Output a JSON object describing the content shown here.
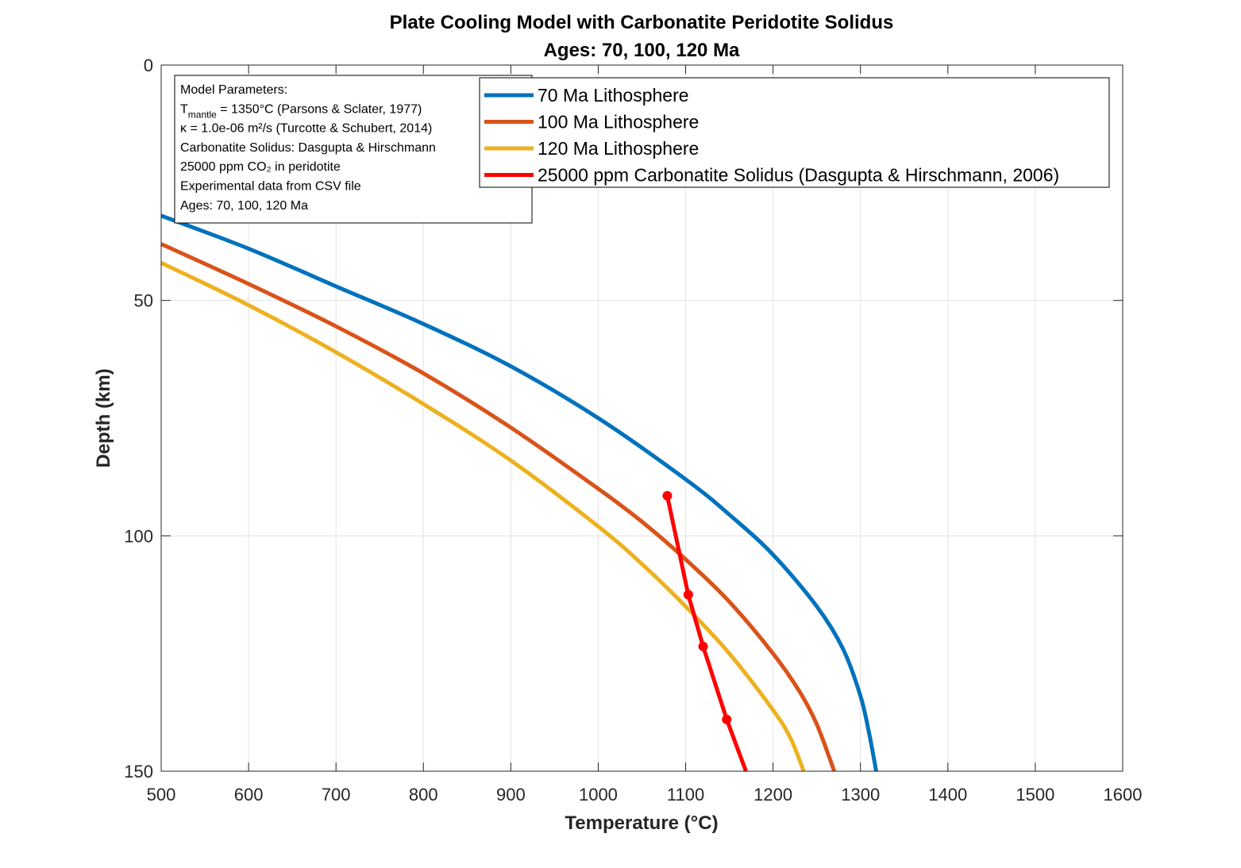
{
  "chart_data": {
    "type": "line",
    "title": "Plate Cooling Model with Carbonatite Peridotite Solidus",
    "subtitle": "Ages: 70, 100, 120 Ma",
    "xlabel": "Temperature (°C)",
    "ylabel": "Depth (km)",
    "xlim": [
      500,
      1600
    ],
    "ylim": [
      0,
      150
    ],
    "y_reversed": true,
    "x_ticks": [
      500,
      600,
      700,
      800,
      900,
      1000,
      1100,
      1200,
      1300,
      1400,
      1500,
      1600
    ],
    "y_ticks": [
      0,
      50,
      100,
      150
    ],
    "grid": true,
    "legend_position": "top-right",
    "series": [
      {
        "name": "70 Ma Lithosphere",
        "color": "#0072BD",
        "marker": false,
        "points": [
          [
            500,
            32
          ],
          [
            600,
            39
          ],
          [
            700,
            47
          ],
          [
            800,
            55
          ],
          [
            900,
            64
          ],
          [
            1000,
            75
          ],
          [
            1100,
            88
          ],
          [
            1150,
            95.5
          ],
          [
            1200,
            104
          ],
          [
            1250,
            115
          ],
          [
            1280,
            124
          ],
          [
            1300,
            134
          ],
          [
            1310,
            142
          ],
          [
            1318,
            150
          ]
        ]
      },
      {
        "name": "100 Ma Lithosphere",
        "color": "#D95319",
        "marker": false,
        "points": [
          [
            500,
            38
          ],
          [
            600,
            46.5
          ],
          [
            700,
            55.5
          ],
          [
            800,
            65.5
          ],
          [
            900,
            77
          ],
          [
            1000,
            90
          ],
          [
            1050,
            97
          ],
          [
            1100,
            105
          ],
          [
            1150,
            114
          ],
          [
            1200,
            125
          ],
          [
            1230,
            133
          ],
          [
            1250,
            140
          ],
          [
            1270,
            150
          ]
        ]
      },
      {
        "name": "120 Ma Lithosphere",
        "color": "#EDB120",
        "marker": false,
        "points": [
          [
            500,
            42
          ],
          [
            600,
            51
          ],
          [
            700,
            61
          ],
          [
            800,
            72
          ],
          [
            900,
            84
          ],
          [
            1000,
            98
          ],
          [
            1050,
            106
          ],
          [
            1100,
            115
          ],
          [
            1150,
            125
          ],
          [
            1200,
            137
          ],
          [
            1220,
            143
          ],
          [
            1235,
            150
          ]
        ]
      },
      {
        "name": "25000 ppm Carbonatite Solidus (Dasgupta & Hirschmann, 2006)",
        "color": "#FF0000",
        "marker": true,
        "points": [
          [
            1079,
            91.5
          ],
          [
            1103,
            112.5
          ],
          [
            1120,
            123.5
          ],
          [
            1147,
            139
          ],
          [
            1169,
            150
          ]
        ]
      }
    ],
    "annotation": {
      "lines": [
        {
          "text": "Model Parameters:"
        },
        {
          "text": "T",
          "sub": "mantle",
          "rest": " = 1350°C (Parsons & Sclater, 1977)"
        },
        {
          "text": "κ = 1.0e-06 m²/s (Turcotte & Schubert, 2014)"
        },
        {
          "text": "Carbonatite Solidus: Dasgupta & Hirschmann"
        },
        {
          "text": "25000 ppm CO₂ in peridotite"
        },
        {
          "text": "Experimental data from CSV file"
        },
        {
          "text": "Ages: 70, 100, 120 Ma"
        }
      ]
    }
  }
}
